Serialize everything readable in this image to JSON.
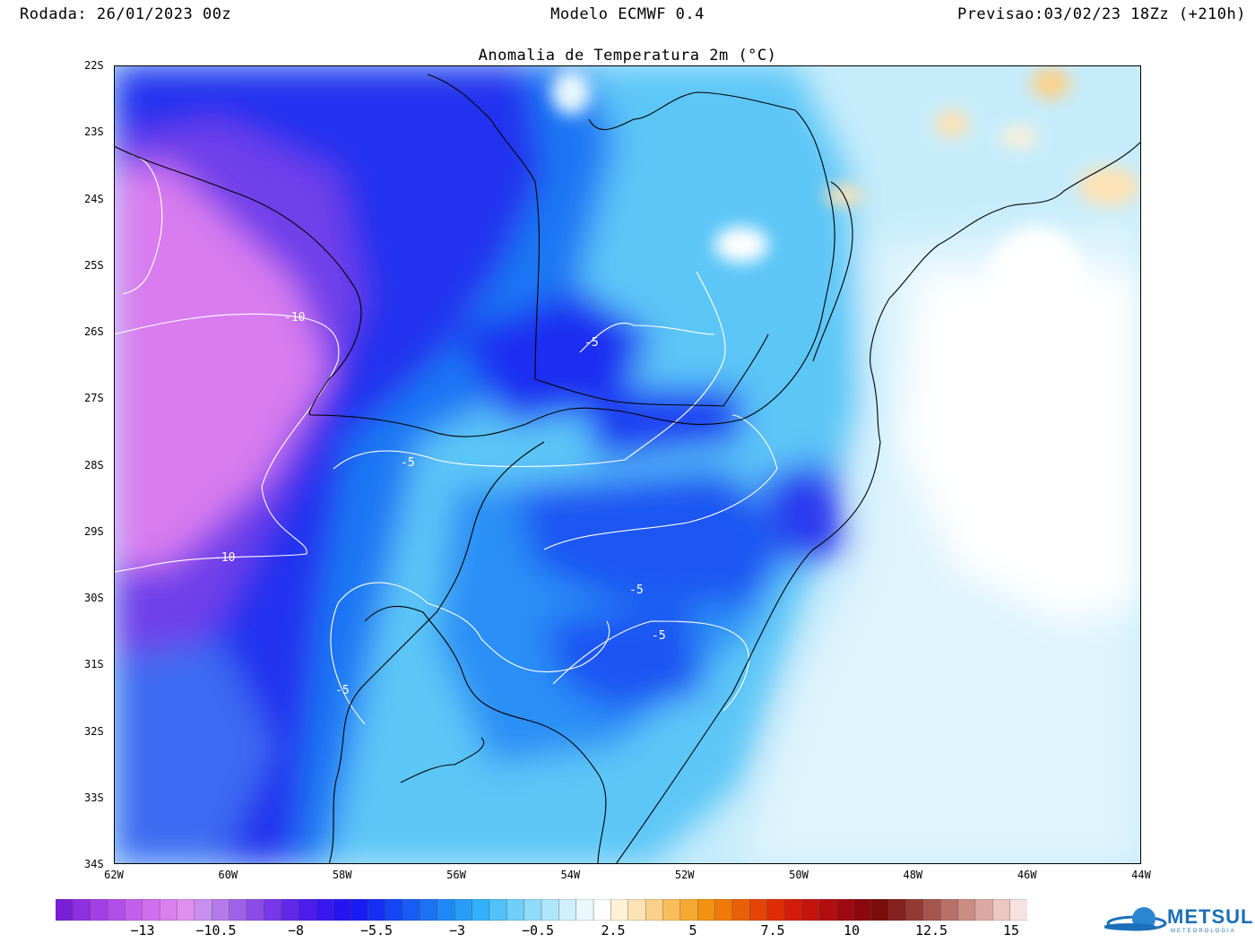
{
  "header": {
    "run": "Rodada: 26/01/2023 00z",
    "model": "Modelo ECMWF 0.4",
    "forecast": "Previsao:03/02/23 18Zz (+210h)"
  },
  "map": {
    "title": "Anomalia de Temperatura 2m (°C)",
    "lat_labels": [
      "22S",
      "23S",
      "24S",
      "25S",
      "26S",
      "27S",
      "28S",
      "29S",
      "30S",
      "31S",
      "32S",
      "33S",
      "34S"
    ],
    "lon_labels": [
      "62W",
      "60W",
      "58W",
      "56W",
      "54W",
      "52W",
      "50W",
      "48W",
      "46W",
      "44W"
    ],
    "lat_range": [
      -34,
      -22
    ],
    "lon_range": [
      -62,
      -44
    ],
    "contour_labels": [
      "-10",
      "-5"
    ]
  },
  "colorbar": {
    "labels": [
      "−13",
      "−10.5",
      "−8",
      "−5.5",
      "−3",
      "−0.5",
      "2.5",
      "5",
      "7.5",
      "10",
      "12.5",
      "15"
    ],
    "colors": [
      "#7a1fd6",
      "#8e2fe0",
      "#a240e6",
      "#b24fe9",
      "#c160ec",
      "#cf6fee",
      "#d97ff0",
      "#e08ff0",
      "#c890ee",
      "#b57ae9",
      "#9f62e6",
      "#8a4be6",
      "#7638e8",
      "#6128ea",
      "#4c1cec",
      "#3818ee",
      "#2614f0",
      "#1a1af2",
      "#1530f2",
      "#1446f3",
      "#175cf4",
      "#1b72f5",
      "#2088f6",
      "#279df7",
      "#32b1f8",
      "#4fc2f8",
      "#6fcff9",
      "#8fdbfa",
      "#b0e6fb",
      "#cff0fc",
      "#e8f8fd",
      "#ffffff",
      "#fff1d6",
      "#fde2b5",
      "#fbd08a",
      "#f9bd5a",
      "#f6a830",
      "#f39110",
      "#ef7a08",
      "#ea6006",
      "#e44506",
      "#de2d06",
      "#d41c0a",
      "#c4140e",
      "#b20e10",
      "#9e0a10",
      "#8a080e",
      "#7a0c0c",
      "#85211e",
      "#943a34",
      "#a5554e",
      "#b87068",
      "#cb8c84",
      "#dca9a2",
      "#ecc8c2",
      "#f6e3df"
    ]
  },
  "logo": {
    "name": "METSUL",
    "tagline": "METEOROLOGIA"
  }
}
